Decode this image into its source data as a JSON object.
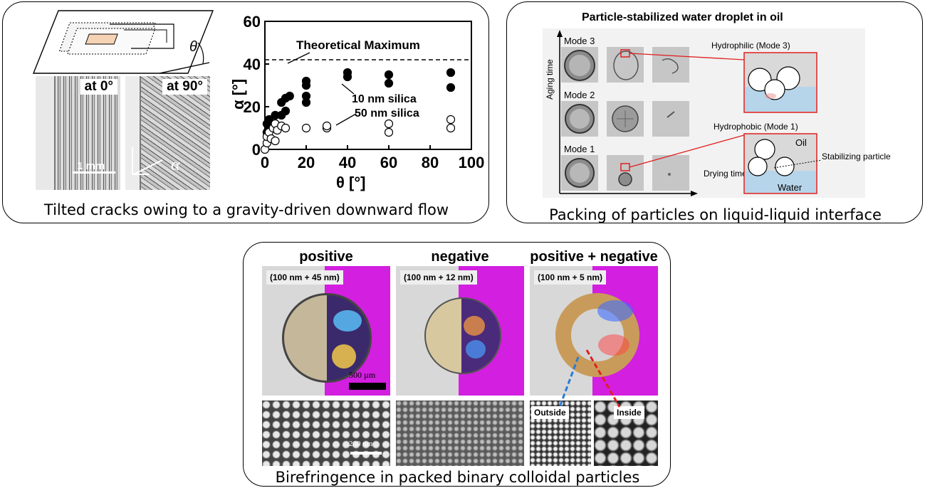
{
  "panel1": {
    "caption": "Tilted cracks owing to a gravity-driven downward flow",
    "theta_symbol": "θ",
    "micro_labels": [
      "at 0°",
      "at 90°"
    ],
    "scale_bar": "1 mm",
    "alpha_symbol": "α"
  },
  "chart_data": {
    "type": "scatter",
    "title": "",
    "xlabel": "θ [°]",
    "ylabel": "α [°]",
    "xlim": [
      0,
      100
    ],
    "ylim": [
      0,
      60
    ],
    "xticks": [
      0,
      20,
      40,
      60,
      80,
      100
    ],
    "yticks": [
      0,
      20,
      40,
      60
    ],
    "reference_line": {
      "y": 42,
      "label": "Theoretical Maximum",
      "style": "dashed"
    },
    "series": [
      {
        "name": "10 nm silica",
        "marker": "filled-circle",
        "x": [
          1,
          1,
          2,
          2,
          3,
          5,
          5,
          8,
          8,
          10,
          10,
          12,
          20,
          20,
          20,
          20,
          40,
          40,
          60,
          60,
          90,
          90
        ],
        "y": [
          8,
          12,
          9,
          14,
          10,
          12,
          16,
          16,
          22,
          18,
          24,
          25,
          22,
          25,
          30,
          32,
          34,
          36,
          31,
          35,
          29,
          36
        ]
      },
      {
        "name": "50 nm silica",
        "marker": "open-circle",
        "x": [
          0,
          1,
          1,
          2,
          3,
          4,
          5,
          5,
          6,
          8,
          10,
          20,
          30,
          30,
          60,
          60,
          90,
          90
        ],
        "y": [
          0,
          3,
          6,
          8,
          5,
          10,
          4,
          12,
          9,
          11,
          10,
          10,
          10,
          11,
          8,
          12,
          10,
          14
        ]
      }
    ],
    "annotations": [
      "10 nm silica",
      "50 nm silica"
    ],
    "grid": false
  },
  "panel2": {
    "caption": "Packing of particles on liquid-liquid interface",
    "title": "Particle-stabilized water droplet in oil",
    "y_axis_label": "Aging time",
    "x_axis_label": "Drying time",
    "modes": [
      "Mode 3",
      "Mode 2",
      "Mode 1"
    ],
    "hydrophilic": "Hydrophilic (Mode 3)",
    "hydrophobic": "Hydrophobic (Mode 1)",
    "oil": "Oil",
    "water": "Water",
    "stabilizing": "Stabilizing particle"
  },
  "panel3": {
    "caption": "Birefringence in packed binary colloidal particles",
    "columns": [
      {
        "heading": "positive",
        "tag": "(100 nm + 45 nm)"
      },
      {
        "heading": "negative",
        "tag": "(100 nm + 12 nm)"
      },
      {
        "heading": "positive + negative",
        "tag": "(100 nm + 5 nm)"
      }
    ],
    "scale_500": "500 µm",
    "scale_200": "200 nm",
    "outside": "Outside",
    "inside": "Inside"
  }
}
